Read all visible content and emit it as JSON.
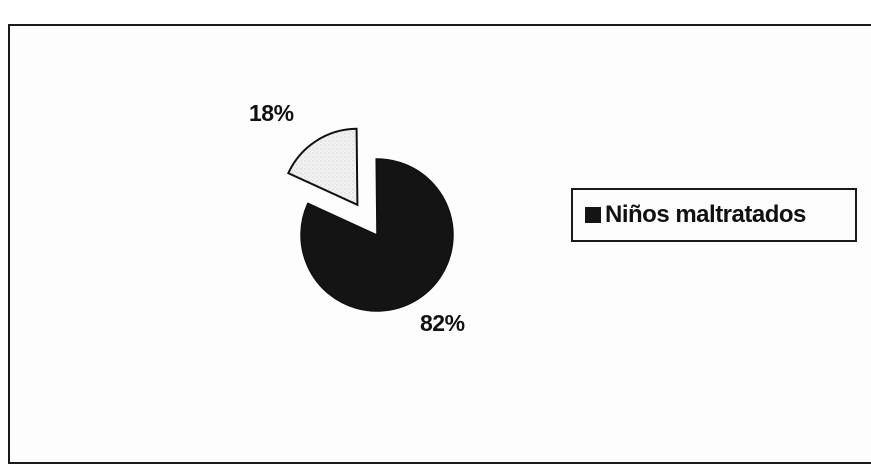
{
  "chart_data": {
    "type": "pie",
    "title": "",
    "series": [
      {
        "name": "Niños maltratados",
        "values": [
          82,
          18
        ],
        "labels": [
          "82%",
          "18%"
        ]
      }
    ],
    "slices": [
      {
        "label": "82%",
        "value": 82,
        "color": "#141414",
        "exploded": false
      },
      {
        "label": "18%",
        "value": 18,
        "color": "#efefef",
        "exploded": true
      }
    ],
    "legend": {
      "placement": "right",
      "entries": [
        "Niños maltratados"
      ]
    }
  }
}
